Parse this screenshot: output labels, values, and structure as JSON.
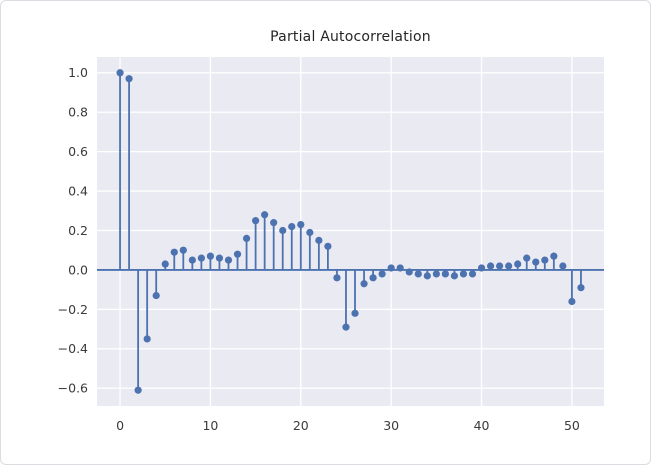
{
  "window": {
    "background": "#ffffff",
    "border_color": "#d9dce1"
  },
  "chart_data": {
    "type": "stem",
    "title": "Partial Autocorrelation",
    "xlabel": "",
    "ylabel": "",
    "x": [
      0,
      1,
      2,
      3,
      4,
      5,
      6,
      7,
      8,
      9,
      10,
      11,
      12,
      13,
      14,
      15,
      16,
      17,
      18,
      19,
      20,
      21,
      22,
      23,
      24,
      25,
      26,
      27,
      28,
      29,
      30,
      31,
      32,
      33,
      34,
      35,
      36,
      37,
      38,
      39,
      40,
      41,
      42,
      43,
      44,
      45,
      46,
      47,
      48,
      49,
      50,
      51
    ],
    "values": [
      1.0,
      0.97,
      -0.61,
      -0.35,
      -0.13,
      0.03,
      0.09,
      0.1,
      0.05,
      0.06,
      0.07,
      0.06,
      0.05,
      0.08,
      0.16,
      0.25,
      0.28,
      0.24,
      0.2,
      0.22,
      0.23,
      0.19,
      0.15,
      0.12,
      -0.04,
      -0.29,
      -0.22,
      -0.07,
      -0.04,
      -0.02,
      0.01,
      0.01,
      -0.01,
      -0.02,
      -0.03,
      -0.02,
      -0.02,
      -0.03,
      -0.02,
      -0.02,
      0.01,
      0.02,
      0.02,
      0.02,
      0.03,
      0.06,
      0.04,
      0.05,
      0.07,
      0.02,
      -0.16,
      -0.09
    ],
    "xticks": {
      "values": [
        0,
        10,
        20,
        30,
        40,
        50
      ],
      "labels": [
        "0",
        "10",
        "20",
        "30",
        "40",
        "50"
      ]
    },
    "yticks": {
      "values": [
        1.0,
        0.8,
        0.6,
        0.4,
        0.2,
        0.0,
        -0.2,
        -0.4,
        -0.6
      ],
      "labels": [
        "1.0",
        "0.8",
        "0.6",
        "0.4",
        "0.2",
        "0.0",
        "−0.2",
        "−0.4",
        "−0.6"
      ]
    },
    "xlim": [
      -2.55,
      53.55
    ],
    "ylim": [
      -0.69,
      1.08
    ],
    "grid": true,
    "legend": "none",
    "zero_line": true,
    "colors": {
      "stem": "#4c72b0",
      "axes_background": "#eaeaf2",
      "grid": "#ffffff",
      "tick_text": "#3b3b3b",
      "title_text": "#262626"
    }
  }
}
